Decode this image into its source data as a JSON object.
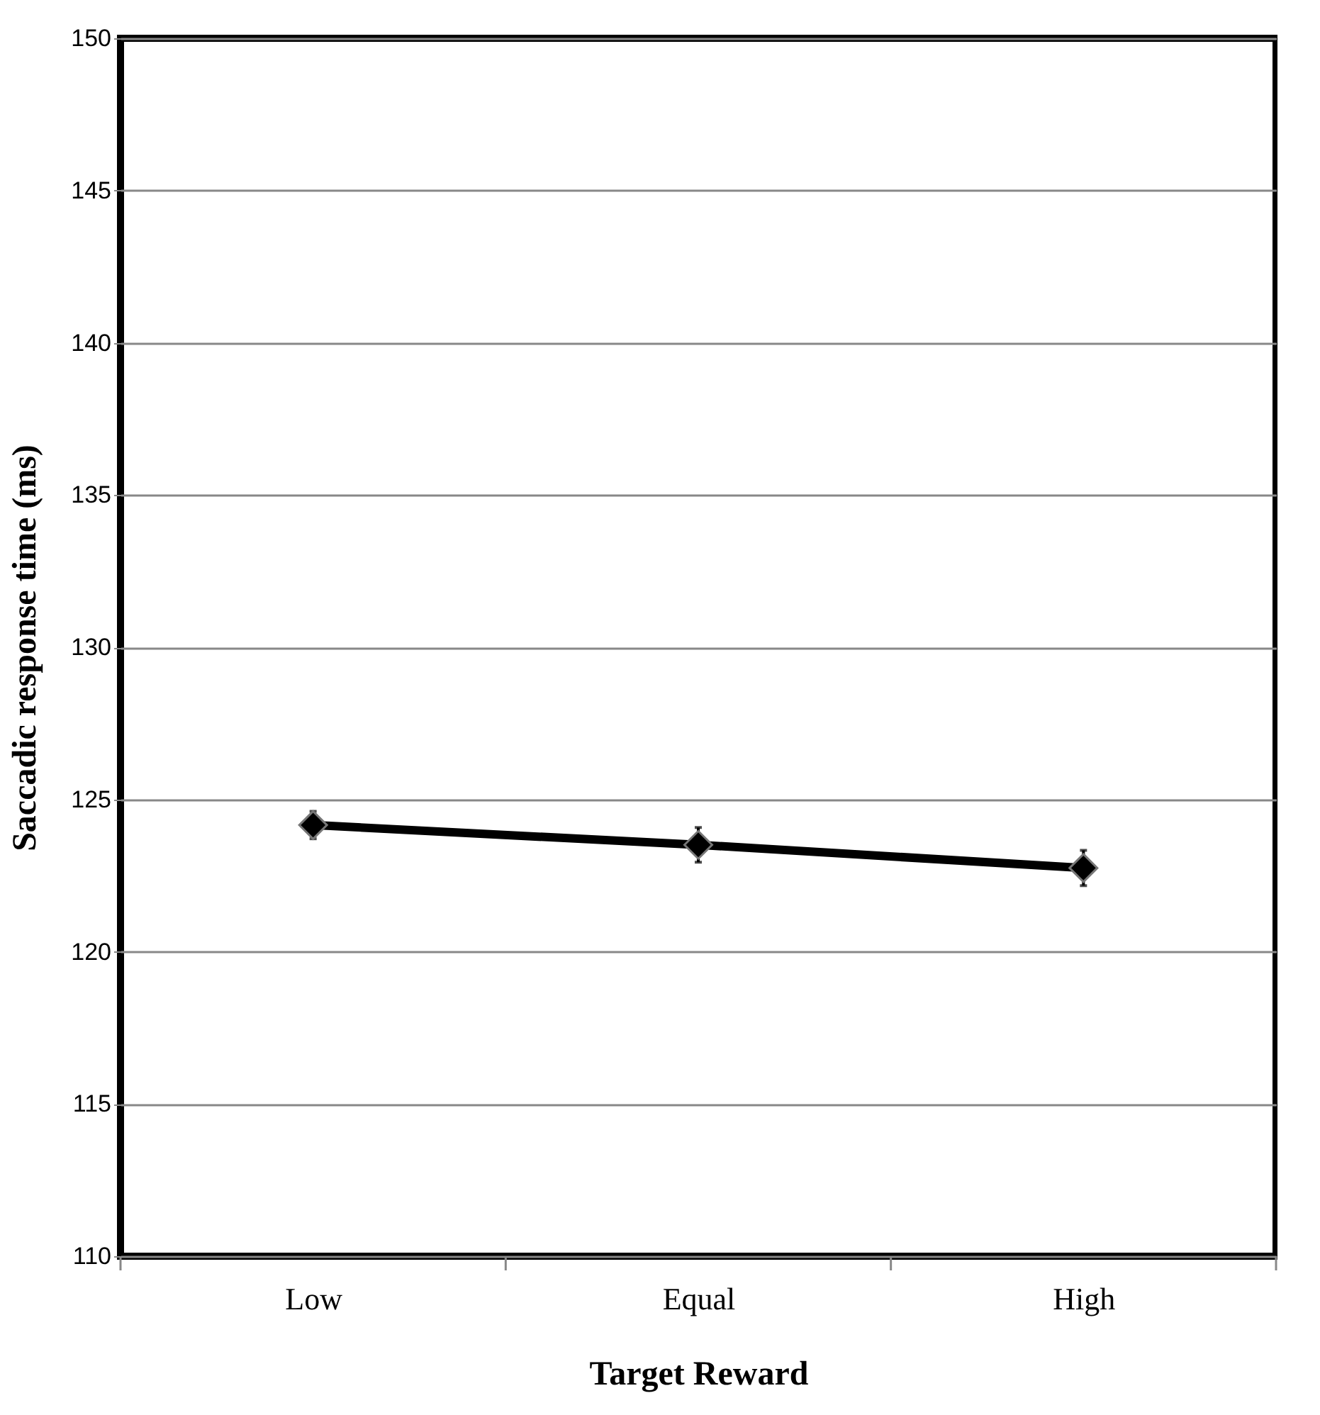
{
  "chart_data": {
    "type": "line",
    "xlabel": "Target Reward",
    "ylabel": "Saccadic response time (ms)",
    "categories": [
      "Low",
      "Equal",
      "High"
    ],
    "series": [
      {
        "color": "#000000",
        "values": [
          124.16,
          123.51,
          122.75
        ],
        "errors": [
          0.45,
          0.57,
          0.58
        ]
      }
    ],
    "ylim": [
      110,
      150
    ],
    "yticks": [
      110,
      115,
      120,
      125,
      130,
      135,
      140,
      145,
      150
    ],
    "grid": "y",
    "marker": "diamond",
    "line_style": "solid",
    "legend": false
  }
}
